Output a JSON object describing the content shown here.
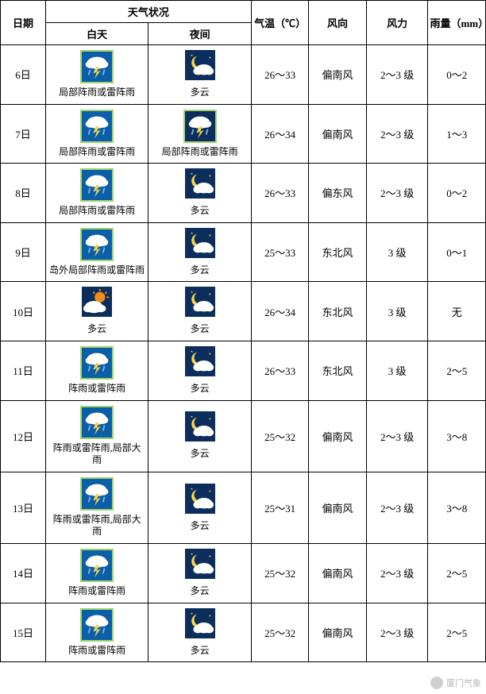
{
  "headers": {
    "date": "日期",
    "weather_group": "天气状况",
    "day": "白天",
    "night": "夜间",
    "temp": "气温（℃）",
    "wind_dir": "风向",
    "wind_force": "风力",
    "rain": "雨量（mm）"
  },
  "icon_colors": {
    "bg_night": "#0b2e5c",
    "bg_day": "#0b5ea8",
    "moon": "#f9d64a",
    "sun": "#f28c1b",
    "cloud": "#ffffff",
    "cloud_gray": "#d8d8d8",
    "rain": "#7db4e0",
    "bolt": "#f9d64a"
  },
  "rows": [
    {
      "date": "6日",
      "day_icon": "thunder",
      "day_text": "局部阵雨或雷阵雨",
      "night_icon": "moon_cloud",
      "night_text": "多云",
      "temp": "26～33",
      "wind_dir": "偏南风",
      "wind_force": "2～3 级",
      "rain": "0～2"
    },
    {
      "date": "7日",
      "day_icon": "thunder",
      "day_text": "局部阵雨或雷阵雨",
      "night_icon": "thunder_night",
      "night_text": "局部阵雨或雷阵雨",
      "temp": "26～34",
      "wind_dir": "偏南风",
      "wind_force": "2～3 级",
      "rain": "1～3"
    },
    {
      "date": "8日",
      "day_icon": "thunder",
      "day_text": "局部阵雨或雷阵雨",
      "night_icon": "moon_cloud",
      "night_text": "多云",
      "temp": "26～33",
      "wind_dir": "偏东风",
      "wind_force": "2～3 级",
      "rain": "0～2"
    },
    {
      "date": "9日",
      "day_icon": "thunder",
      "day_text": "岛外局部阵雨或雷阵雨",
      "night_icon": "moon_cloud",
      "night_text": "多云",
      "temp": "25～33",
      "wind_dir": "东北风",
      "wind_force": "3 级",
      "rain": "0～1"
    },
    {
      "date": "10日",
      "day_icon": "sun_cloud",
      "day_text": "多云",
      "night_icon": "moon_cloud",
      "night_text": "多云",
      "temp": "26～34",
      "wind_dir": "东北风",
      "wind_force": "3 级",
      "rain": "无"
    },
    {
      "date": "11日",
      "day_icon": "thunder",
      "day_text": "阵雨或雷阵雨",
      "night_icon": "moon_cloud",
      "night_text": "多云",
      "temp": "26～33",
      "wind_dir": "东北风",
      "wind_force": "3 级",
      "rain": "2～5"
    },
    {
      "date": "12日",
      "day_icon": "thunder",
      "day_text": "阵雨或雷阵雨,局部大雨",
      "night_icon": "moon_cloud",
      "night_text": "多云",
      "temp": "25～32",
      "wind_dir": "偏南风",
      "wind_force": "2～3 级",
      "rain": "3～8"
    },
    {
      "date": "13日",
      "day_icon": "thunder",
      "day_text": "阵雨或雷阵雨,局部大雨",
      "night_icon": "moon_cloud",
      "night_text": "多云",
      "temp": "25～31",
      "wind_dir": "偏南风",
      "wind_force": "2～3 级",
      "rain": "3～8"
    },
    {
      "date": "14日",
      "day_icon": "thunder",
      "day_text": "阵雨或雷阵雨",
      "night_icon": "moon_cloud",
      "night_text": "多云",
      "temp": "25～32",
      "wind_dir": "偏南风",
      "wind_force": "2～3 级",
      "rain": "2～5"
    },
    {
      "date": "15日",
      "day_icon": "thunder",
      "day_text": "阵雨或雷阵雨",
      "night_icon": "moon_cloud",
      "night_text": "多云",
      "temp": "25～32",
      "wind_dir": "偏南风",
      "wind_force": "2～3 级",
      "rain": "2～5"
    }
  ],
  "watermark": {
    "text": "厦门气象"
  }
}
